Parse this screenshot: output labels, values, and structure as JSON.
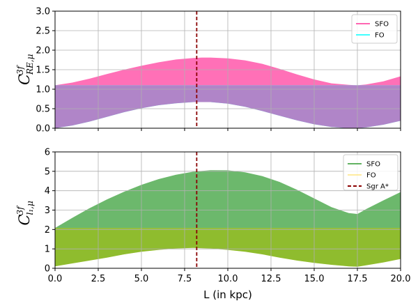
{
  "chart_data": [
    {
      "type": "area",
      "panel": "top",
      "ylabel": {
        "base": "C",
        "sup": "3f",
        "sub": "RE,μ"
      },
      "xlabel": "",
      "xlim": [
        0,
        20
      ],
      "ylim": [
        0,
        3.0
      ],
      "yticks": [
        "0.0",
        "0.5",
        "1.0",
        "1.5",
        "2.0",
        "2.5",
        "3.0"
      ],
      "ytick_values": [
        0,
        0.5,
        1.0,
        1.5,
        2.0,
        2.5,
        3.0
      ],
      "xtick_values": [
        0,
        2.5,
        5,
        7.5,
        10,
        12.5,
        15,
        17.5,
        20
      ],
      "grid": true,
      "legend_position": "top-right",
      "vline": {
        "x": 8.2,
        "color": "#8b0000"
      },
      "series": [
        {
          "name": "SFO",
          "color": "#ff3399",
          "x": [
            0,
            1,
            2,
            3,
            4,
            5,
            6,
            7,
            8,
            8.5,
            9,
            10,
            11,
            12,
            13,
            14,
            15,
            16,
            17,
            17.5,
            18,
            19,
            20
          ],
          "upper": [
            1.1,
            1.17,
            1.27,
            1.39,
            1.5,
            1.6,
            1.69,
            1.76,
            1.8,
            1.81,
            1.81,
            1.79,
            1.74,
            1.65,
            1.52,
            1.38,
            1.25,
            1.15,
            1.11,
            1.1,
            1.12,
            1.2,
            1.33
          ],
          "lower": [
            1.1,
            1.1,
            1.1,
            1.1,
            1.1,
            1.1,
            1.1,
            1.1,
            1.1,
            1.1,
            1.1,
            1.1,
            1.1,
            1.1,
            1.1,
            1.1,
            1.1,
            1.1,
            1.1,
            1.1,
            1.1,
            1.1,
            1.1
          ]
        },
        {
          "name": "FO",
          "color": "#00ffff",
          "x": [
            0,
            1,
            2,
            3,
            4,
            5,
            6,
            7,
            8,
            8.5,
            9,
            10,
            11,
            12,
            13,
            14,
            15,
            16,
            17,
            17.5,
            18,
            19,
            20
          ],
          "upper": [
            1.1,
            1.1,
            1.1,
            1.1,
            1.1,
            1.1,
            1.1,
            1.1,
            1.1,
            1.1,
            1.1,
            1.1,
            1.1,
            1.1,
            1.1,
            1.1,
            1.1,
            1.1,
            1.1,
            1.1,
            1.1,
            1.1,
            1.1
          ],
          "lower": [
            0.0,
            0.07,
            0.17,
            0.29,
            0.41,
            0.51,
            0.59,
            0.64,
            0.67,
            0.67,
            0.67,
            0.63,
            0.55,
            0.44,
            0.32,
            0.2,
            0.1,
            0.03,
            0.0,
            0.0,
            0.02,
            0.09,
            0.19
          ]
        }
      ],
      "overlap_color": "#b085c8"
    },
    {
      "type": "area",
      "panel": "bottom",
      "ylabel": {
        "base": "C",
        "sup": "3f",
        "sub": "l₁,μ"
      },
      "xlabel": "L (in kpc)",
      "xlim": [
        0,
        20
      ],
      "ylim": [
        0,
        6
      ],
      "yticks": [
        "0",
        "1",
        "2",
        "3",
        "4",
        "5",
        "6"
      ],
      "ytick_values": [
        0,
        1,
        2,
        3,
        4,
        5,
        6
      ],
      "xticks": [
        "0.0",
        "2.5",
        "5.0",
        "7.5",
        "10.0",
        "12.5",
        "15.0",
        "17.5",
        "20.0"
      ],
      "xtick_values": [
        0,
        2.5,
        5,
        7.5,
        10,
        12.5,
        15,
        17.5,
        20
      ],
      "grid": true,
      "legend_position": "top-right",
      "vline": {
        "x": 8.2,
        "color": "#8b0000",
        "name": "Sgr A*"
      },
      "series": [
        {
          "name": "SFO",
          "color": "#2e9a2e",
          "x": [
            0,
            1,
            2,
            3,
            4,
            5,
            6,
            7,
            8,
            9,
            10,
            11,
            12,
            13,
            14,
            15,
            16,
            17,
            17.5,
            18,
            19,
            20
          ],
          "upper": [
            2.08,
            2.6,
            3.1,
            3.55,
            3.95,
            4.3,
            4.6,
            4.82,
            4.98,
            5.06,
            5.05,
            4.95,
            4.75,
            4.45,
            4.05,
            3.6,
            3.15,
            2.85,
            2.8,
            3.05,
            3.5,
            3.93
          ],
          "lower": [
            2.08,
            2.08,
            2.08,
            2.08,
            2.08,
            2.08,
            2.08,
            2.08,
            2.08,
            2.08,
            2.08,
            2.08,
            2.08,
            2.08,
            2.08,
            2.08,
            2.08,
            2.08,
            2.08,
            2.08,
            2.08,
            2.08
          ]
        },
        {
          "name": "FO",
          "color": "#ffe680",
          "x": [
            0,
            1,
            2,
            3,
            4,
            5,
            6,
            7,
            8,
            9,
            10,
            11,
            12,
            13,
            14,
            15,
            16,
            17,
            17.5,
            18,
            19,
            20
          ],
          "upper": [
            2.08,
            2.08,
            2.08,
            2.08,
            2.08,
            2.08,
            2.08,
            2.08,
            2.08,
            2.08,
            2.08,
            2.08,
            2.08,
            2.08,
            2.08,
            2.08,
            2.08,
            2.08,
            2.08,
            2.08,
            2.08,
            2.08
          ],
          "lower": [
            0.1,
            0.25,
            0.4,
            0.55,
            0.72,
            0.85,
            0.95,
            1.02,
            1.05,
            1.02,
            0.95,
            0.85,
            0.72,
            0.55,
            0.4,
            0.28,
            0.18,
            0.1,
            0.08,
            0.15,
            0.3,
            0.48
          ]
        }
      ],
      "overlap_color": "#8fbc2e"
    }
  ],
  "legend_top": [
    {
      "label": "SFO",
      "color": "#ff3399"
    },
    {
      "label": "FO",
      "color": "#00ffff"
    }
  ],
  "legend_bottom": [
    {
      "label": "SFO",
      "color": "#2e9a2e",
      "style": "solid"
    },
    {
      "label": "FO",
      "color": "#ffe680",
      "style": "solid"
    },
    {
      "label": "Sgr A*",
      "color": "#8b0000",
      "style": "dashed"
    }
  ]
}
